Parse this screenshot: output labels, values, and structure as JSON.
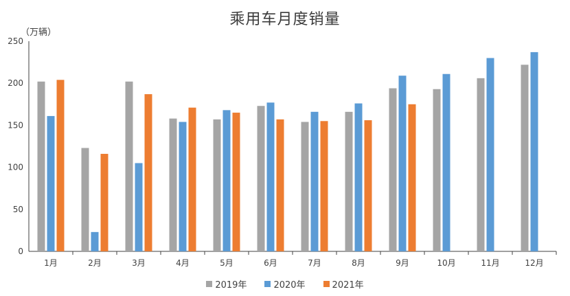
{
  "chart_data": {
    "type": "bar",
    "title": "乘用车月度销量",
    "ylabel": "（万辆）",
    "xlabel": "",
    "ylim": [
      0,
      250
    ],
    "yticks": [
      0,
      50,
      100,
      150,
      200,
      250
    ],
    "grid": false,
    "legend_position": "bottom",
    "categories": [
      "1月",
      "2月",
      "3月",
      "4月",
      "5月",
      "6月",
      "7月",
      "8月",
      "9月",
      "10月",
      "11月",
      "12月"
    ],
    "series": [
      {
        "name": "2019年",
        "color": "#a5a5a5",
        "values": [
          202,
          123,
          202,
          158,
          157,
          173,
          154,
          166,
          194,
          193,
          206,
          222
        ]
      },
      {
        "name": "2020年",
        "color": "#5b9bd5",
        "values": [
          161,
          23,
          105,
          154,
          168,
          177,
          166,
          176,
          209,
          211,
          230,
          237
        ]
      },
      {
        "name": "2021年",
        "color": "#ed7d31",
        "values": [
          204,
          116,
          187,
          171,
          165,
          157,
          155,
          156,
          175,
          null,
          null,
          null
        ]
      }
    ]
  }
}
